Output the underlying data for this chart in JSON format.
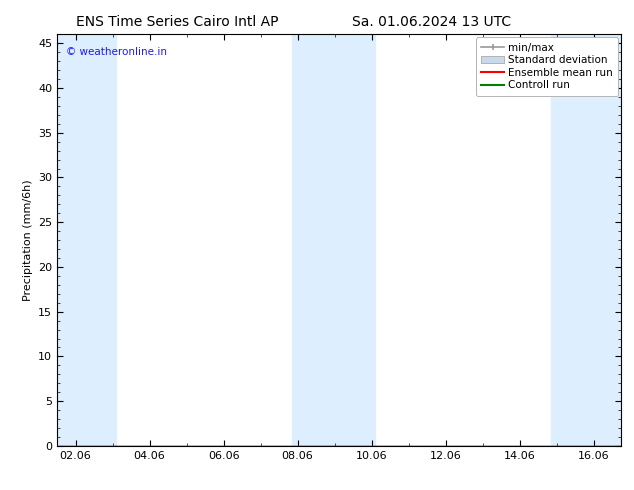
{
  "title_left": "ENS Time Series Cairo Intl AP",
  "title_right": "Sa. 01.06.2024 13 UTC",
  "ylabel": "Precipitation (mm/6h)",
  "watermark": "© weatheronline.in",
  "watermark_color": "#1a1aff",
  "xlim_start": 1.5,
  "xlim_end": 16.75,
  "ylim": [
    0,
    46
  ],
  "yticks": [
    0,
    5,
    10,
    15,
    20,
    25,
    30,
    35,
    40,
    45
  ],
  "xtick_labels": [
    "02.06",
    "04.06",
    "06.06",
    "08.06",
    "10.06",
    "12.06",
    "14.06",
    "16.06"
  ],
  "xtick_positions": [
    2.0,
    4.0,
    6.0,
    8.0,
    10.0,
    12.0,
    14.0,
    16.0
  ],
  "shaded_bands": [
    {
      "x_start": 1.5,
      "x_end": 3.1
    },
    {
      "x_start": 7.85,
      "x_end": 10.1
    },
    {
      "x_start": 14.85,
      "x_end": 16.75
    }
  ],
  "shade_color": "#ddeeff",
  "bg_color": "#ffffff",
  "plot_bg_color": "#ffffff",
  "legend_items": [
    {
      "label": "min/max",
      "color": "#999999",
      "type": "errorbar"
    },
    {
      "label": "Standard deviation",
      "color": "#c8daea",
      "type": "box"
    },
    {
      "label": "Ensemble mean run",
      "color": "#ff0000",
      "type": "line"
    },
    {
      "label": "Controll run",
      "color": "#008000",
      "type": "line"
    }
  ],
  "title_fontsize": 10,
  "tick_fontsize": 8,
  "ylabel_fontsize": 8,
  "legend_fontsize": 7.5
}
